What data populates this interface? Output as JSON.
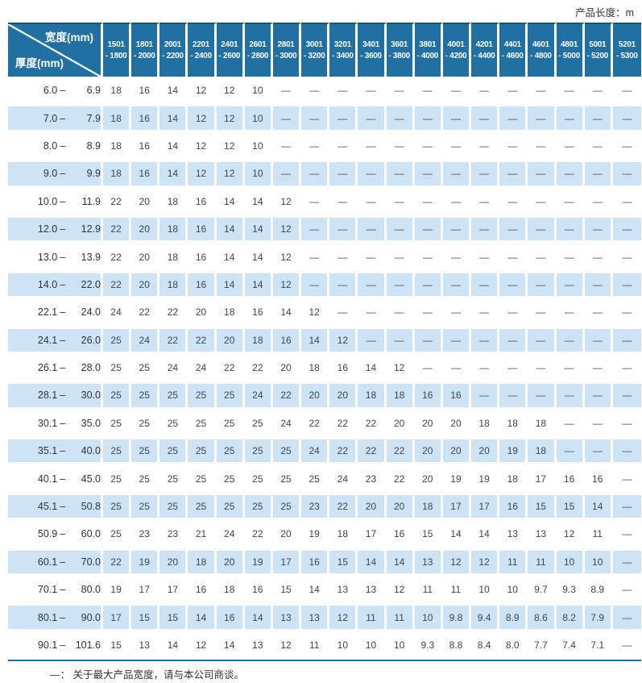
{
  "page": {
    "unit_label": "产品长度：m",
    "footer_note": "—： 关于最大产品宽度，请与本公司商谈。"
  },
  "colors": {
    "header-blue": "#2170A4",
    "header-top-edge": "#19537B",
    "row-alt": "#CDE4F6",
    "separator-white": "#FFFFFF",
    "value-text": "#3F464C",
    "label-text": "#2E3338",
    "dash-text": "#4A5156",
    "note-text": "#333333"
  },
  "table": {
    "corner": {
      "width_label": "宽度(mm)",
      "thickness_label": "厚度(mm)"
    },
    "range_separator": "–",
    "no_data_symbol": "—",
    "columns": [
      [
        "1501",
        "- 1800"
      ],
      [
        "1801",
        "- 2000"
      ],
      [
        "2001",
        "- 2200"
      ],
      [
        "2201",
        "- 2400"
      ],
      [
        "2401",
        "- 2600"
      ],
      [
        "2601",
        "- 2800"
      ],
      [
        "2801",
        "- 3000"
      ],
      [
        "3001",
        "- 3200"
      ],
      [
        "3201",
        "- 3400"
      ],
      [
        "3401",
        "- 3600"
      ],
      [
        "3601",
        "- 3800"
      ],
      [
        "3801",
        "- 4000"
      ],
      [
        "4001",
        "- 4200"
      ],
      [
        "4201",
        "- 4400"
      ],
      [
        "4401",
        "- 4600"
      ],
      [
        "4601",
        "- 4800"
      ],
      [
        "4801",
        "- 5000"
      ],
      [
        "5001",
        "- 5200"
      ],
      [
        "5201",
        "- 5300"
      ]
    ],
    "rows": [
      {
        "from": "6.0",
        "to": "6.9",
        "values": [
          "18",
          "16",
          "14",
          "12",
          "12",
          "10",
          "—",
          "—",
          "—",
          "—",
          "—",
          "—",
          "—",
          "—",
          "—",
          "—",
          "—",
          "—",
          "—"
        ]
      },
      {
        "from": "7.0",
        "to": "7.9",
        "values": [
          "18",
          "16",
          "14",
          "12",
          "12",
          "10",
          "—",
          "—",
          "—",
          "—",
          "—",
          "—",
          "—",
          "—",
          "—",
          "—",
          "—",
          "—",
          "—"
        ]
      },
      {
        "from": "8.0",
        "to": "8.9",
        "values": [
          "18",
          "16",
          "14",
          "12",
          "12",
          "10",
          "—",
          "—",
          "—",
          "—",
          "—",
          "—",
          "—",
          "—",
          "—",
          "—",
          "—",
          "—",
          "—"
        ]
      },
      {
        "from": "9.0",
        "to": "9.9",
        "values": [
          "18",
          "16",
          "14",
          "12",
          "12",
          "10",
          "—",
          "—",
          "—",
          "—",
          "—",
          "—",
          "—",
          "—",
          "—",
          "—",
          "—",
          "—",
          "—"
        ]
      },
      {
        "from": "10.0",
        "to": "11.9",
        "values": [
          "22",
          "20",
          "18",
          "16",
          "14",
          "14",
          "12",
          "—",
          "—",
          "—",
          "—",
          "—",
          "—",
          "—",
          "—",
          "—",
          "—",
          "—",
          "—"
        ]
      },
      {
        "from": "12.0",
        "to": "12.9",
        "values": [
          "22",
          "20",
          "18",
          "16",
          "14",
          "14",
          "12",
          "—",
          "—",
          "—",
          "—",
          "—",
          "—",
          "—",
          "—",
          "—",
          "—",
          "—",
          "—"
        ]
      },
      {
        "from": "13.0",
        "to": "13.9",
        "values": [
          "22",
          "20",
          "18",
          "16",
          "14",
          "14",
          "12",
          "—",
          "—",
          "—",
          "—",
          "—",
          "—",
          "—",
          "—",
          "—",
          "—",
          "—",
          "—"
        ]
      },
      {
        "from": "14.0",
        "to": "22.0",
        "values": [
          "22",
          "20",
          "18",
          "16",
          "14",
          "14",
          "12",
          "—",
          "—",
          "—",
          "—",
          "—",
          "—",
          "—",
          "—",
          "—",
          "—",
          "—",
          "—"
        ]
      },
      {
        "from": "22.1",
        "to": "24.0",
        "values": [
          "24",
          "22",
          "22",
          "20",
          "18",
          "16",
          "14",
          "12",
          "—",
          "—",
          "—",
          "—",
          "—",
          "—",
          "—",
          "—",
          "—",
          "—",
          "—"
        ]
      },
      {
        "from": "24.1",
        "to": "26.0",
        "values": [
          "25",
          "24",
          "22",
          "22",
          "20",
          "18",
          "16",
          "14",
          "12",
          "—",
          "—",
          "—",
          "—",
          "—",
          "—",
          "—",
          "—",
          "—",
          "—"
        ]
      },
      {
        "from": "26.1",
        "to": "28.0",
        "values": [
          "25",
          "25",
          "24",
          "24",
          "22",
          "22",
          "20",
          "18",
          "16",
          "14",
          "12",
          "—",
          "—",
          "—",
          "—",
          "—",
          "—",
          "—",
          "—"
        ]
      },
      {
        "from": "28.1",
        "to": "30.0",
        "values": [
          "25",
          "25",
          "25",
          "25",
          "25",
          "24",
          "22",
          "20",
          "20",
          "18",
          "18",
          "16",
          "16",
          "—",
          "—",
          "—",
          "—",
          "—",
          "—"
        ]
      },
      {
        "from": "30.1",
        "to": "35.0",
        "values": [
          "25",
          "25",
          "25",
          "25",
          "25",
          "25",
          "24",
          "22",
          "22",
          "22",
          "20",
          "20",
          "20",
          "18",
          "18",
          "18",
          "—",
          "—",
          "—"
        ]
      },
      {
        "from": "35.1",
        "to": "40.0",
        "values": [
          "25",
          "25",
          "25",
          "25",
          "25",
          "25",
          "25",
          "24",
          "22",
          "22",
          "22",
          "20",
          "20",
          "20",
          "19",
          "18",
          "—",
          "—",
          "—"
        ]
      },
      {
        "from": "40.1",
        "to": "45.0",
        "values": [
          "25",
          "25",
          "25",
          "25",
          "25",
          "25",
          "25",
          "25",
          "24",
          "23",
          "22",
          "20",
          "19",
          "19",
          "18",
          "17",
          "16",
          "16",
          "—"
        ]
      },
      {
        "from": "45.1",
        "to": "50.8",
        "values": [
          "25",
          "25",
          "25",
          "25",
          "25",
          "25",
          "25",
          "23",
          "22",
          "20",
          "20",
          "18",
          "17",
          "17",
          "16",
          "15",
          "15",
          "14",
          "—"
        ]
      },
      {
        "from": "50.9",
        "to": "60.0",
        "values": [
          "25",
          "23",
          "23",
          "21",
          "24",
          "22",
          "20",
          "19",
          "18",
          "17",
          "16",
          "15",
          "14",
          "14",
          "13",
          "13",
          "12",
          "11",
          "—"
        ]
      },
      {
        "from": "60.1",
        "to": "70.0",
        "values": [
          "22",
          "19",
          "20",
          "18",
          "20",
          "19",
          "17",
          "16",
          "15",
          "14",
          "14",
          "13",
          "12",
          "12",
          "11",
          "11",
          "10",
          "10",
          "—"
        ]
      },
      {
        "from": "70.1",
        "to": "80.0",
        "values": [
          "19",
          "17",
          "17",
          "16",
          "18",
          "16",
          "15",
          "14",
          "13",
          "13",
          "12",
          "11",
          "11",
          "10",
          "10",
          "9.7",
          "9.3",
          "8.9",
          "—"
        ]
      },
      {
        "from": "80.1",
        "to": "90.0",
        "values": [
          "17",
          "15",
          "15",
          "14",
          "16",
          "14",
          "13",
          "13",
          "12",
          "11",
          "11",
          "10",
          "9.8",
          "9.4",
          "8.9",
          "8.6",
          "8.2",
          "7.9",
          "—"
        ]
      },
      {
        "from": "90.1",
        "to": "101.6",
        "values": [
          "15",
          "13",
          "14",
          "12",
          "14",
          "13",
          "12",
          "11",
          "10",
          "10",
          "10",
          "9.3",
          "8.8",
          "8.4",
          "8.0",
          "7.7",
          "7.4",
          "7.1",
          "—"
        ]
      }
    ]
  }
}
